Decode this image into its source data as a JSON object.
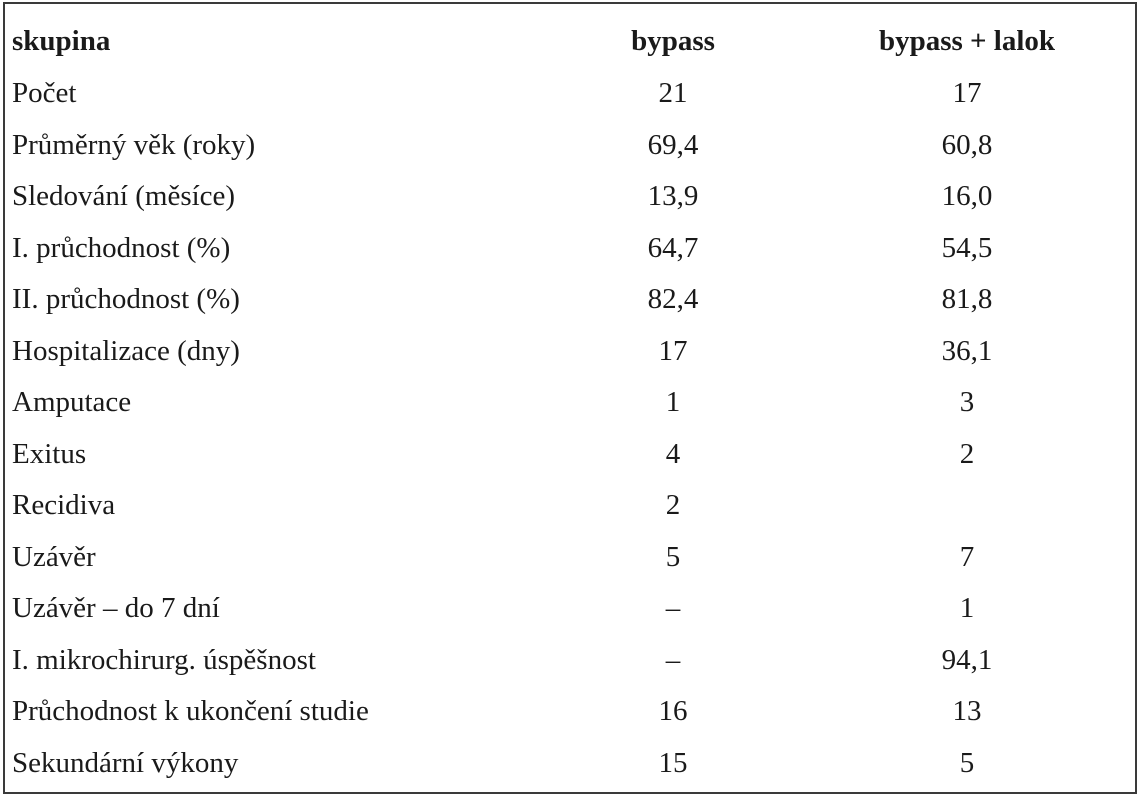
{
  "table": {
    "headers": [
      "skupina",
      "bypass",
      "bypass + lalok"
    ],
    "rows": [
      [
        "Počet",
        "21",
        "17"
      ],
      [
        "Průměrný věk (roky)",
        "69,4",
        "60,8"
      ],
      [
        "Sledování (měsíce)",
        "13,9",
        "16,0"
      ],
      [
        "I. průchodnost (%)",
        "64,7",
        "54,5"
      ],
      [
        "II. průchodnost (%)",
        "82,4",
        "81,8"
      ],
      [
        "Hospitalizace (dny)",
        "17",
        "36,1"
      ],
      [
        "Amputace",
        "1",
        "3"
      ],
      [
        "Exitus",
        "4",
        "2"
      ],
      [
        "Recidiva",
        "2",
        ""
      ],
      [
        "Uzávěr",
        "5",
        "7"
      ],
      [
        "Uzávěr – do 7 dní",
        "–",
        "1"
      ],
      [
        "I. mikrochirurg. úspěšnost",
        "–",
        "94,1"
      ],
      [
        "Průchodnost k ukončení studie",
        "16",
        "13"
      ],
      [
        "Sekundární výkony",
        "15",
        "5"
      ]
    ]
  }
}
